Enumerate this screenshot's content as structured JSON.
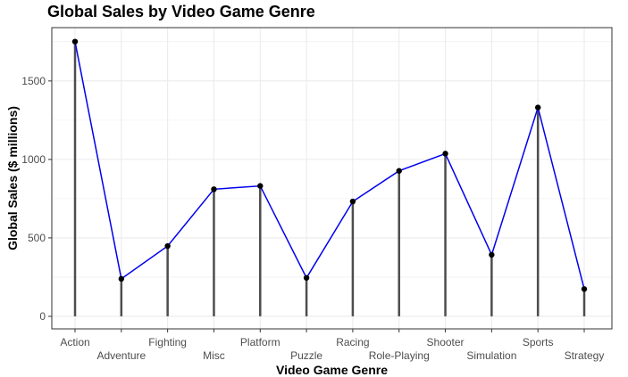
{
  "chart_data": {
    "type": "line",
    "title": "Global Sales by Video Game Genre",
    "xlabel": "Video Game Genre",
    "ylabel": "Global Sales ($ millions)",
    "categories": [
      "Action",
      "Adventure",
      "Fighting",
      "Misc",
      "Platform",
      "Puzzle",
      "Racing",
      "Role-Playing",
      "Shooter",
      "Simulation",
      "Sports",
      "Strategy"
    ],
    "series": [
      {
        "values": [
          1751,
          239,
          448,
          810,
          831,
          245,
          732,
          927,
          1037,
          392,
          1331,
          174
        ]
      }
    ],
    "ylim": [
      -80,
      1840
    ],
    "yticks": [
      0,
      500,
      1000,
      1500
    ],
    "grid": true,
    "colors": {
      "line": "#0000ee",
      "points": "#000000",
      "stems": "#4d4d4d",
      "grid": "#ebebeb",
      "panel_border": "#333333"
    }
  }
}
